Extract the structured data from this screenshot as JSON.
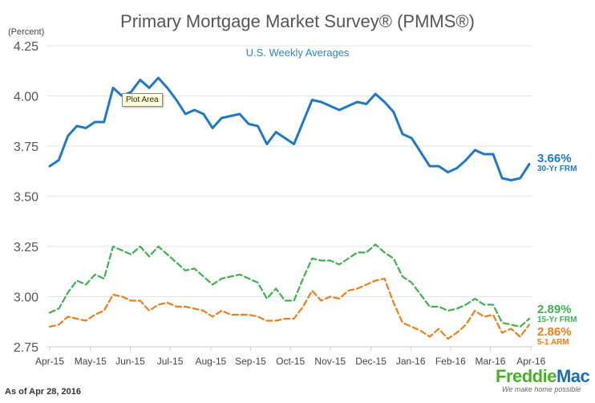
{
  "header": {
    "title": "Primary Mortgage Market Survey® (PMMS®)",
    "subtitle": "U.S. Weekly Averages",
    "unit_label": "(Percent)"
  },
  "footer": {
    "as_of": "As of Apr 28, 2016",
    "logo_name_part1": "Freddie",
    "logo_name_part2": "Mac",
    "logo_tagline": "We make home possible"
  },
  "tooltip": {
    "text": "Plot Area"
  },
  "end_labels": [
    {
      "value": "3.66%",
      "name": "30-Yr FRM"
    },
    {
      "value": "2.89%",
      "name": "15-Yr FRM"
    },
    {
      "value": "2.86%",
      "name": "5-1 ARM"
    }
  ],
  "colors": {
    "frm30": "#1f78c8",
    "frm15": "#3cb34a",
    "arm51": "#f07d1a",
    "grid": "#e6e6e6",
    "axis": "#cccccc",
    "logo_green": "#4caf2a",
    "logo_blue": "#1c6cb4"
  },
  "chart_data": {
    "type": "line",
    "title": "Primary Mortgage Market Survey® (PMMS®)",
    "subtitle": "U.S. Weekly Averages",
    "xlabel": "",
    "ylabel": "(Percent)",
    "ylim": [
      2.75,
      4.25
    ],
    "yticks": [
      "4.25",
      "4.00",
      "3.75",
      "3.50",
      "3.25",
      "3.00",
      "2.75"
    ],
    "xtick_labels": [
      "Apr-15",
      "May-15",
      "Jun-15",
      "Jul-15",
      "Aug-15",
      "Sep-15",
      "Oct-15",
      "Nov-15",
      "Dec-15",
      "Jan-16",
      "Feb-16",
      "Mar-16",
      "Apr-16"
    ],
    "xtick_positions": [
      0,
      4.5,
      8.9,
      13.3,
      17.8,
      22.2,
      26.6,
      31.0,
      35.5,
      39.9,
      44.3,
      48.7,
      53.2
    ],
    "grid": true,
    "series": [
      {
        "name": "30-Yr FRM",
        "line_style": "solid",
        "values": [
          3.65,
          3.68,
          3.8,
          3.85,
          3.84,
          3.87,
          3.87,
          4.04,
          4.0,
          4.02,
          4.08,
          4.04,
          4.09,
          4.04,
          3.98,
          3.91,
          3.93,
          3.91,
          3.84,
          3.89,
          3.9,
          3.91,
          3.86,
          3.85,
          3.76,
          3.82,
          3.79,
          3.76,
          3.87,
          3.98,
          3.97,
          3.95,
          3.93,
          3.95,
          3.97,
          3.96,
          4.01,
          3.97,
          3.92,
          3.81,
          3.79,
          3.72,
          3.65,
          3.65,
          3.62,
          3.64,
          3.68,
          3.73,
          3.71,
          3.71,
          3.59,
          3.58,
          3.59,
          3.66
        ]
      },
      {
        "name": "15-Yr FRM",
        "line_style": "dashed",
        "values": [
          2.92,
          2.94,
          3.02,
          3.08,
          3.06,
          3.11,
          3.09,
          3.25,
          3.23,
          3.21,
          3.25,
          3.2,
          3.25,
          3.21,
          3.17,
          3.13,
          3.14,
          3.1,
          3.06,
          3.09,
          3.1,
          3.11,
          3.09,
          3.07,
          2.99,
          3.04,
          2.98,
          2.98,
          3.09,
          3.19,
          3.18,
          3.18,
          3.16,
          3.19,
          3.22,
          3.22,
          3.26,
          3.22,
          3.19,
          3.1,
          3.07,
          3.01,
          2.95,
          2.95,
          2.93,
          2.94,
          2.96,
          2.99,
          2.96,
          2.96,
          2.87,
          2.86,
          2.85,
          2.89
        ]
      },
      {
        "name": "5-1 ARM",
        "line_style": "dashed",
        "values": [
          2.85,
          2.86,
          2.9,
          2.89,
          2.88,
          2.91,
          2.93,
          3.01,
          3.0,
          2.98,
          2.98,
          2.93,
          2.96,
          2.97,
          2.95,
          2.95,
          2.94,
          2.93,
          2.9,
          2.93,
          2.91,
          2.91,
          2.91,
          2.9,
          2.88,
          2.88,
          2.89,
          2.89,
          2.95,
          3.03,
          2.98,
          3.0,
          2.99,
          3.03,
          3.04,
          3.06,
          3.08,
          3.09,
          2.97,
          2.87,
          2.85,
          2.83,
          2.8,
          2.84,
          2.79,
          2.82,
          2.86,
          2.93,
          2.9,
          2.91,
          2.82,
          2.84,
          2.8,
          2.86
        ]
      }
    ]
  }
}
